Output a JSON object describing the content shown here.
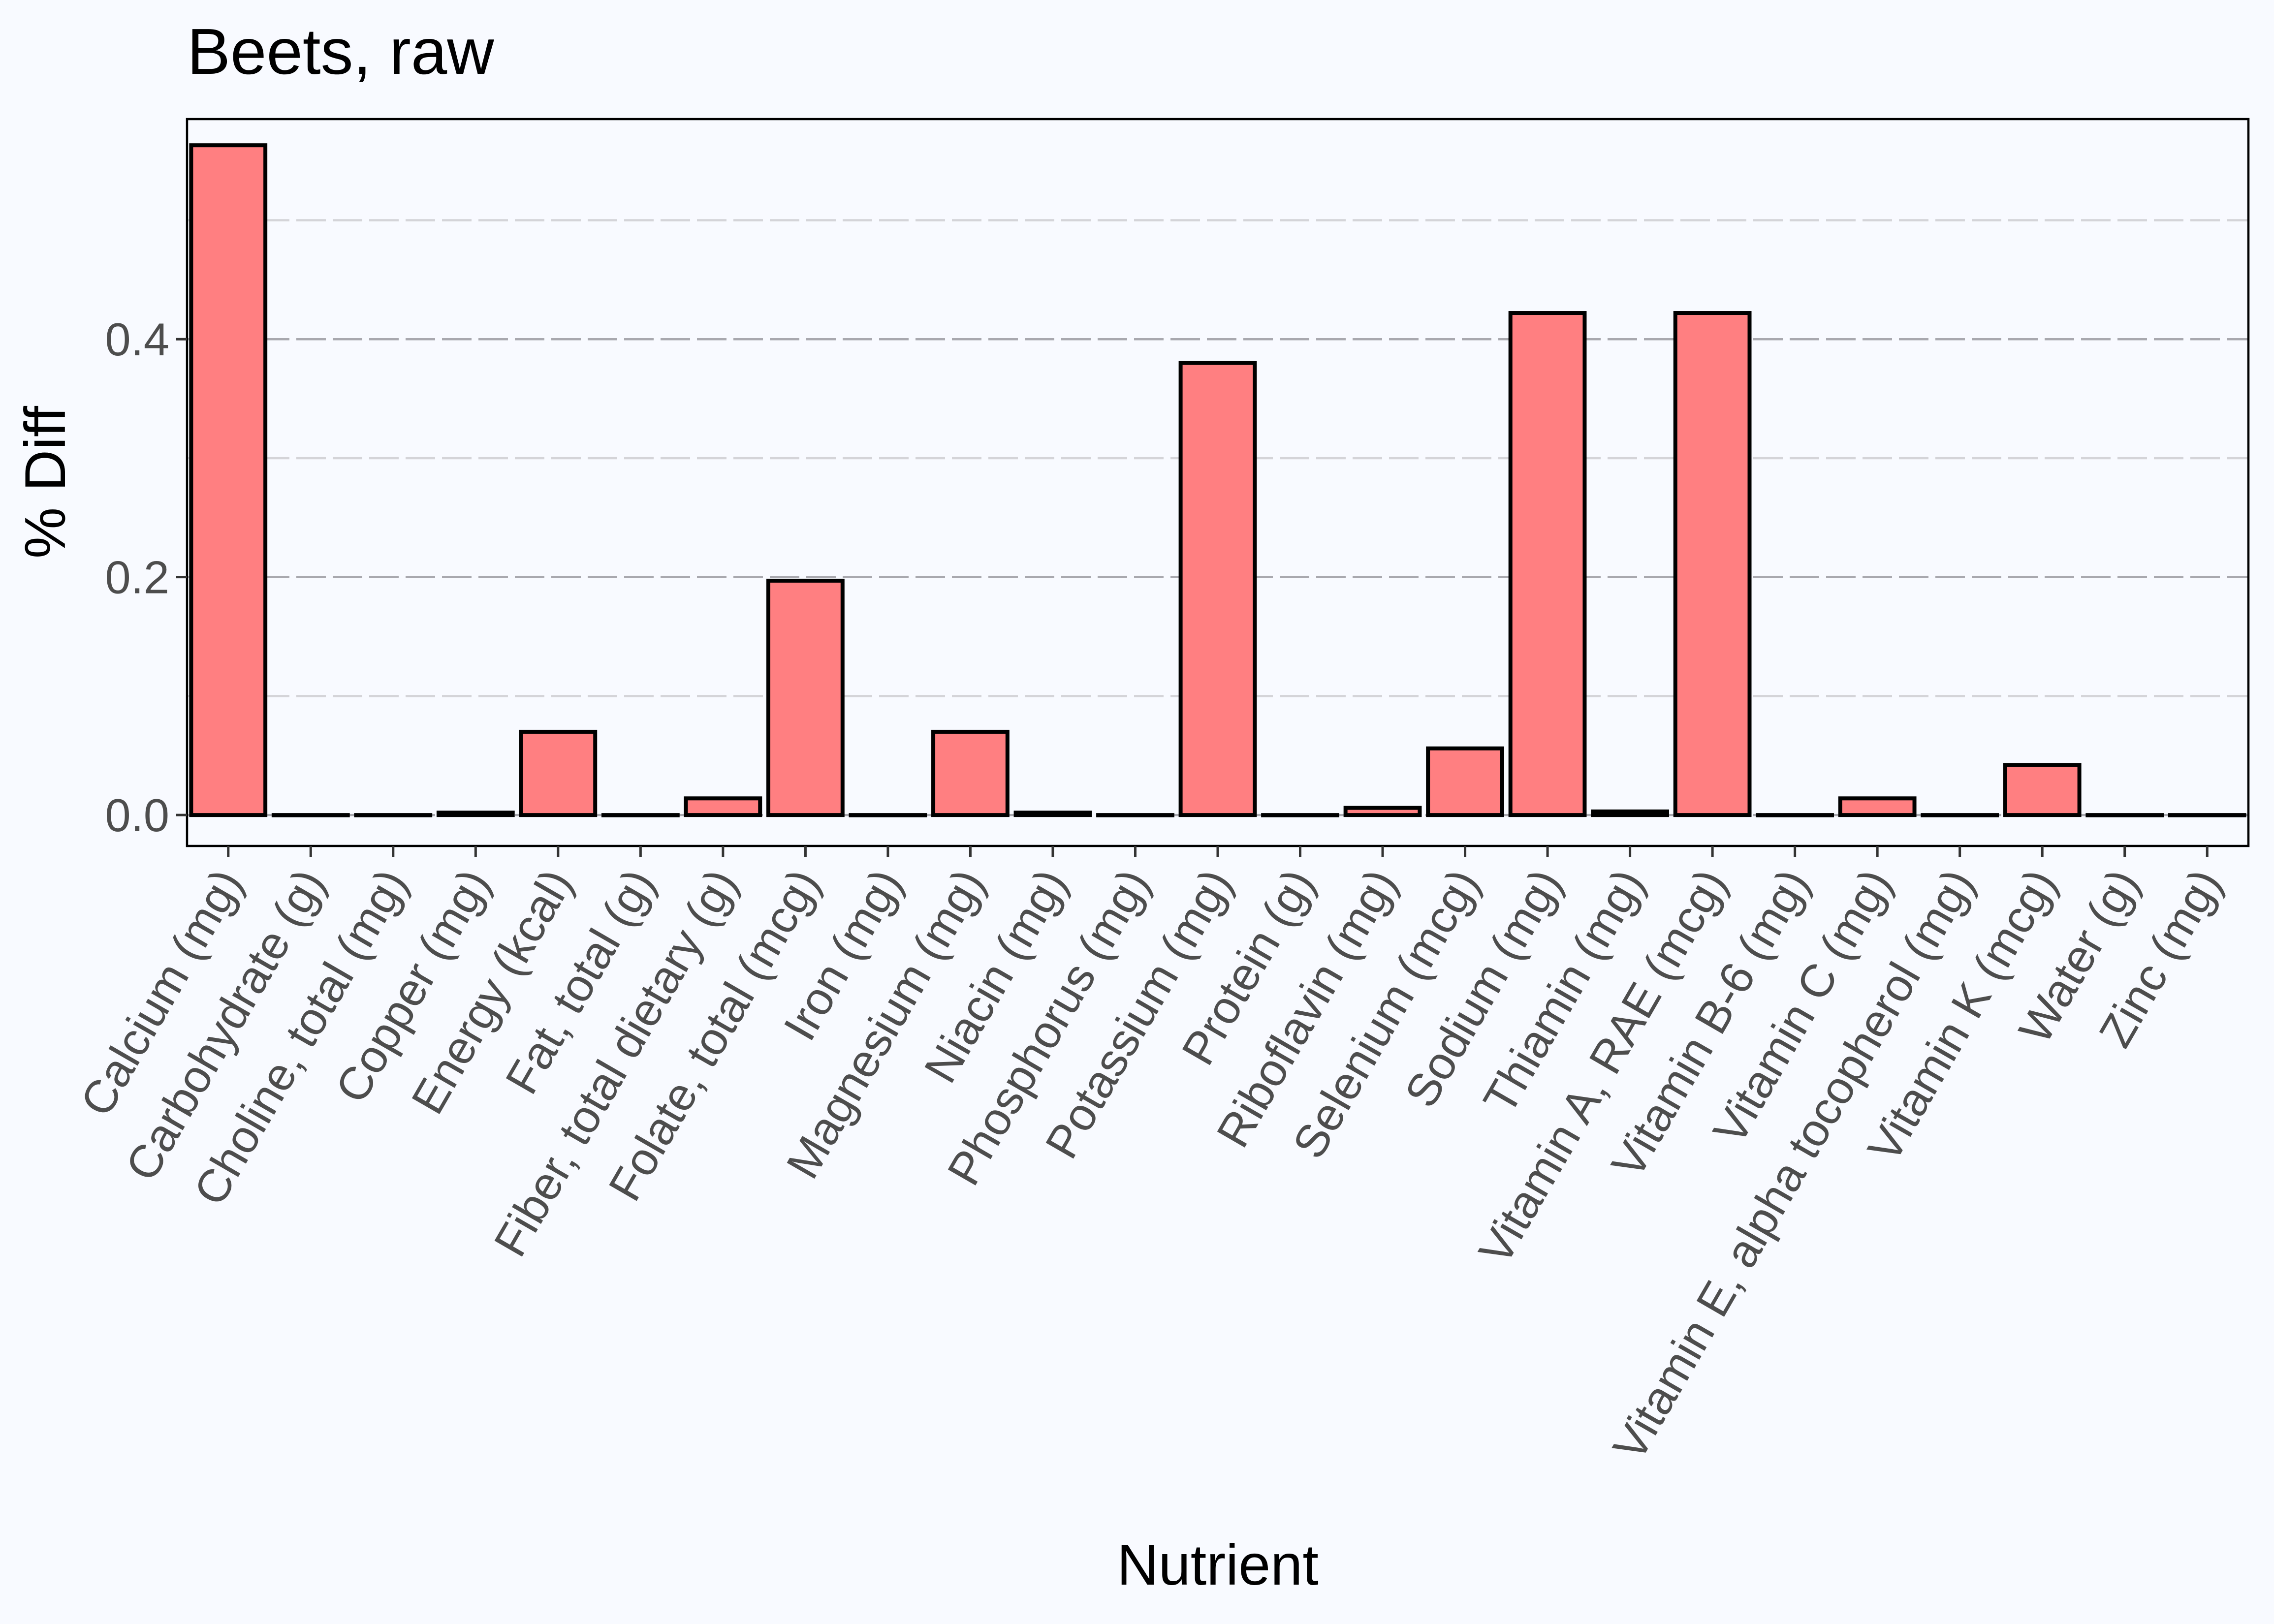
{
  "chart_data": {
    "type": "bar",
    "title": "Beets, raw",
    "xlabel": "Nutrient",
    "ylabel": "% Diff",
    "ylim": [
      -0.026,
      0.585
    ],
    "yticks": [
      0.0,
      0.2,
      0.4
    ],
    "yticks_display": [
      "0.0",
      "0.2",
      "0.4"
    ],
    "grid": true,
    "legend": "none",
    "bar_color": "#FF7F81",
    "bar_edge_color": "#000000",
    "panel_background": "#F8FAFF",
    "categories": [
      "Calcium (mg)",
      "Carbohydrate (g)",
      "Choline, total (mg)",
      "Copper (mg)",
      "Energy (kcal)",
      "Fat, total (g)",
      "Fiber, total dietary (g)",
      "Folate, total (mcg)",
      "Iron (mg)",
      "Magnesium (mg)",
      "Niacin (mg)",
      "Phosphorus (mg)",
      "Potassium (mg)",
      "Protein (g)",
      "Riboflavin (mg)",
      "Selenium (mcg)",
      "Sodium (mg)",
      "Thiamin (mg)",
      "Vitamin A, RAE (mcg)",
      "Vitamin B-6 (mg)",
      "Vitamin C (mg)",
      "Vitamin E, alpha tocopherol (mg)",
      "Vitamin K (mcg)",
      "Water (g)",
      "Zinc (mg)"
    ],
    "values": [
      0.563,
      0.0,
      0.0,
      0.002,
      0.07,
      0.0,
      0.014,
      0.197,
      0.0,
      0.07,
      0.002,
      0.0,
      0.38,
      0.0,
      0.006,
      0.056,
      0.422,
      0.003,
      0.422,
      0.0,
      0.014,
      0.0,
      0.042,
      0.0,
      0.0
    ]
  }
}
